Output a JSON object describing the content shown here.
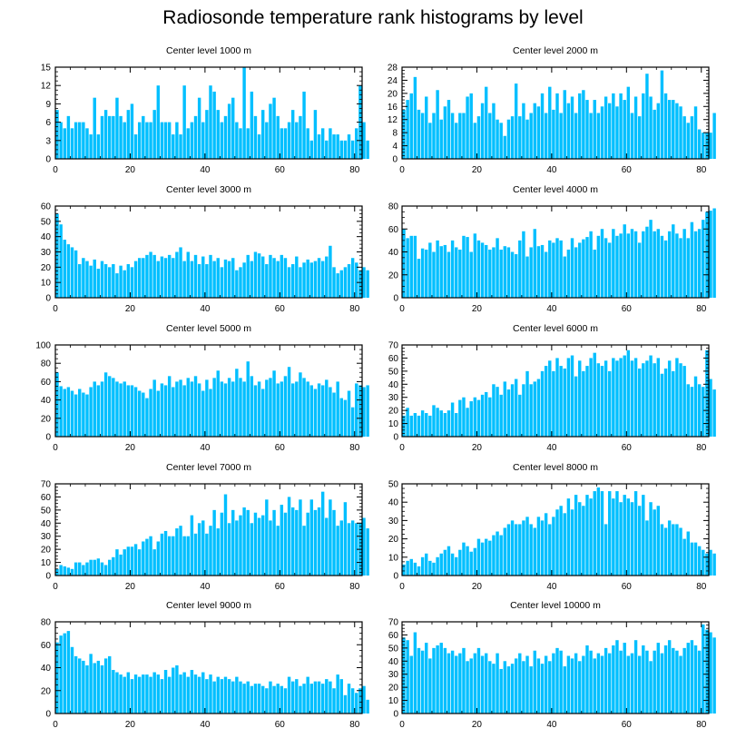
{
  "figure": {
    "title": "Radiosonde temperature rank histograms by level"
  },
  "chart_data": [
    {
      "type": "bar",
      "title": "Center level 1000 m",
      "x_start": 0,
      "xlim": [
        0,
        82
      ],
      "ylim": [
        0,
        15
      ],
      "xticks": [
        0,
        20,
        40,
        60,
        80
      ],
      "yticks": [
        0,
        3,
        6,
        9,
        12,
        15
      ],
      "y_tick_side": "left",
      "values": [
        8,
        6,
        5,
        7,
        5,
        6,
        6,
        6,
        5,
        4,
        10,
        4,
        7,
        8,
        7,
        7,
        10,
        7,
        6,
        8,
        9,
        4,
        6,
        7,
        6,
        6,
        8,
        12,
        6,
        6,
        6,
        4,
        6,
        4,
        12,
        5,
        6,
        7,
        10,
        6,
        8,
        12,
        11,
        8,
        6,
        7,
        9,
        10,
        6,
        5,
        15,
        5,
        11,
        7,
        4,
        8,
        6,
        9,
        10,
        7,
        5,
        5,
        6,
        8,
        6,
        7,
        11,
        5,
        3,
        8,
        4,
        5,
        3,
        5,
        4,
        4,
        3,
        3,
        4,
        3,
        5,
        12,
        6,
        3
      ],
      "bar_color": "#00bfff"
    },
    {
      "type": "bar",
      "title": "Center level 2000 m",
      "x_start": 0,
      "xlim": [
        0,
        82
      ],
      "ylim": [
        0,
        28
      ],
      "xticks": [
        0,
        20,
        40,
        60,
        80
      ],
      "yticks": [
        0,
        4,
        8,
        12,
        16,
        20,
        24,
        28
      ],
      "y_tick_side": "left",
      "values": [
        15,
        18,
        20,
        25,
        15,
        14,
        19,
        11,
        14,
        21,
        12,
        16,
        18,
        14,
        11,
        14,
        14,
        19,
        20,
        11,
        13,
        17,
        22,
        14,
        17,
        12,
        11,
        7,
        12,
        13,
        23,
        13,
        17,
        12,
        14,
        17,
        16,
        20,
        14,
        22,
        15,
        20,
        14,
        21,
        17,
        19,
        14,
        20,
        21,
        18,
        14,
        18,
        14,
        16,
        19,
        17,
        20,
        16,
        20,
        18,
        22,
        14,
        19,
        13,
        20,
        26,
        19,
        15,
        17,
        27,
        20,
        18,
        18,
        17,
        16,
        13,
        11,
        13,
        16,
        9,
        8,
        8,
        8,
        14
      ],
      "bar_color": "#00bfff"
    },
    {
      "type": "bar",
      "title": "Center level 3000 m",
      "x_start": 0,
      "xlim": [
        0,
        82
      ],
      "ylim": [
        0,
        60
      ],
      "xticks": [
        0,
        20,
        40,
        60,
        80
      ],
      "yticks": [
        0,
        10,
        20,
        30,
        40,
        50,
        60
      ],
      "y_tick_side": "left",
      "values": [
        55,
        48,
        38,
        35,
        33,
        31,
        22,
        26,
        24,
        21,
        25,
        19,
        24,
        22,
        20,
        22,
        16,
        21,
        18,
        22,
        20,
        24,
        26,
        26,
        28,
        30,
        28,
        24,
        27,
        26,
        28,
        26,
        30,
        33,
        24,
        30,
        24,
        28,
        22,
        27,
        22,
        28,
        24,
        26,
        20,
        25,
        24,
        26,
        18,
        20,
        23,
        28,
        24,
        30,
        29,
        27,
        22,
        28,
        26,
        24,
        28,
        26,
        20,
        22,
        27,
        20,
        23,
        25,
        23,
        24,
        26,
        24,
        27,
        34,
        20,
        16,
        18,
        20,
        22,
        26,
        23,
        18,
        20,
        18
      ],
      "bar_color": "#00bfff"
    },
    {
      "type": "bar",
      "title": "Center level 4000 m",
      "x_start": 0,
      "xlim": [
        0,
        82
      ],
      "ylim": [
        0,
        80
      ],
      "xticks": [
        0,
        20,
        40,
        60,
        80
      ],
      "yticks": [
        0,
        20,
        40,
        60,
        80
      ],
      "y_tick_side": "right",
      "values": [
        60,
        52,
        54,
        54,
        34,
        43,
        42,
        48,
        40,
        50,
        45,
        46,
        40,
        50,
        44,
        42,
        54,
        53,
        40,
        56,
        50,
        48,
        46,
        42,
        44,
        52,
        42,
        45,
        44,
        40,
        38,
        50,
        58,
        36,
        44,
        60,
        45,
        46,
        40,
        50,
        48,
        52,
        50,
        36,
        42,
        52,
        44,
        48,
        51,
        53,
        58,
        42,
        54,
        60,
        52,
        48,
        60,
        54,
        56,
        64,
        56,
        60,
        58,
        48,
        58,
        62,
        68,
        58,
        60,
        54,
        50,
        58,
        64,
        56,
        52,
        60,
        52,
        66,
        58,
        60,
        68,
        75,
        76,
        78
      ],
      "bar_color": "#00bfff"
    },
    {
      "type": "bar",
      "title": "Center level 5000 m",
      "x_start": 0,
      "xlim": [
        0,
        82
      ],
      "ylim": [
        0,
        100
      ],
      "xticks": [
        0,
        20,
        40,
        60,
        80
      ],
      "yticks": [
        0,
        20,
        40,
        60,
        80,
        100
      ],
      "y_tick_side": "left",
      "values": [
        70,
        55,
        52,
        54,
        50,
        46,
        52,
        48,
        46,
        54,
        60,
        56,
        60,
        70,
        66,
        64,
        60,
        58,
        60,
        56,
        56,
        54,
        50,
        48,
        42,
        52,
        62,
        50,
        58,
        56,
        66,
        54,
        60,
        62,
        56,
        64,
        60,
        66,
        58,
        50,
        62,
        52,
        64,
        72,
        60,
        58,
        64,
        60,
        74,
        64,
        60,
        82,
        66,
        56,
        60,
        52,
        62,
        64,
        72,
        58,
        60,
        66,
        76,
        58,
        60,
        70,
        64,
        60,
        56,
        52,
        58,
        56,
        62,
        54,
        48,
        60,
        42,
        40,
        50,
        32,
        58,
        56,
        54,
        56
      ],
      "bar_color": "#00bfff"
    },
    {
      "type": "bar",
      "title": "Center level 6000 m",
      "x_start": 0,
      "xlim": [
        0,
        82
      ],
      "ylim": [
        0,
        70
      ],
      "xticks": [
        0,
        20,
        40,
        60,
        80
      ],
      "yticks": [
        0,
        10,
        20,
        30,
        40,
        50,
        60,
        70
      ],
      "y_tick_side": "right",
      "values": [
        16,
        22,
        16,
        18,
        16,
        20,
        18,
        16,
        24,
        22,
        20,
        18,
        20,
        26,
        18,
        28,
        30,
        22,
        27,
        30,
        28,
        32,
        34,
        30,
        40,
        38,
        32,
        42,
        36,
        40,
        44,
        32,
        40,
        50,
        40,
        42,
        44,
        50,
        54,
        58,
        50,
        60,
        54,
        52,
        60,
        62,
        46,
        58,
        50,
        54,
        60,
        64,
        56,
        54,
        58,
        50,
        60,
        58,
        60,
        62,
        66,
        58,
        60,
        52,
        56,
        58,
        62,
        56,
        60,
        48,
        52,
        58,
        50,
        60,
        56,
        54,
        40,
        38,
        46,
        40,
        38,
        66,
        44,
        36
      ],
      "bar_color": "#00bfff"
    },
    {
      "type": "bar",
      "title": "Center level 7000 m",
      "x_start": 0,
      "xlim": [
        0,
        82
      ],
      "ylim": [
        0,
        70
      ],
      "xticks": [
        0,
        20,
        40,
        60,
        80
      ],
      "yticks": [
        0,
        10,
        20,
        30,
        40,
        50,
        60,
        70
      ],
      "y_tick_side": "left",
      "values": [
        5,
        8,
        7,
        6,
        5,
        10,
        10,
        8,
        10,
        12,
        12,
        13,
        10,
        8,
        12,
        14,
        20,
        16,
        20,
        22,
        22,
        24,
        20,
        26,
        28,
        30,
        20,
        26,
        32,
        34,
        30,
        30,
        36,
        38,
        30,
        30,
        46,
        32,
        40,
        42,
        32,
        38,
        50,
        36,
        48,
        62,
        40,
        50,
        42,
        46,
        52,
        50,
        40,
        48,
        44,
        46,
        58,
        42,
        50,
        38,
        54,
        48,
        60,
        52,
        50,
        58,
        38,
        48,
        58,
        50,
        52,
        64,
        44,
        58,
        50,
        38,
        42,
        56,
        40,
        42,
        40,
        40,
        44,
        36
      ],
      "bar_color": "#00bfff"
    },
    {
      "type": "bar",
      "title": "Center level 8000 m",
      "x_start": 0,
      "xlim": [
        0,
        82
      ],
      "ylim": [
        0,
        50
      ],
      "xticks": [
        0,
        20,
        40,
        60,
        80
      ],
      "yticks": [
        0,
        10,
        20,
        30,
        40,
        50
      ],
      "y_tick_side": "right",
      "values": [
        6,
        8,
        9,
        7,
        5,
        10,
        12,
        8,
        7,
        10,
        12,
        14,
        16,
        12,
        10,
        14,
        18,
        16,
        13,
        15,
        20,
        18,
        20,
        19,
        22,
        24,
        22,
        26,
        28,
        30,
        28,
        28,
        30,
        32,
        28,
        26,
        32,
        30,
        34,
        28,
        32,
        36,
        38,
        34,
        42,
        36,
        44,
        40,
        38,
        44,
        42,
        46,
        48,
        46,
        28,
        46,
        42,
        46,
        40,
        44,
        42,
        40,
        46,
        38,
        44,
        30,
        40,
        36,
        38,
        28,
        26,
        30,
        28,
        28,
        26,
        20,
        24,
        18,
        18,
        16,
        14,
        12,
        14,
        12
      ],
      "bar_color": "#00bfff"
    },
    {
      "type": "bar",
      "title": "Center level 9000 m",
      "x_start": 0,
      "xlim": [
        0,
        82
      ],
      "ylim": [
        0,
        80
      ],
      "xticks": [
        0,
        20,
        40,
        60,
        80
      ],
      "yticks": [
        0,
        20,
        40,
        60,
        80
      ],
      "y_tick_side": "left",
      "values": [
        62,
        68,
        70,
        72,
        58,
        50,
        48,
        46,
        42,
        52,
        44,
        46,
        42,
        48,
        50,
        38,
        36,
        34,
        32,
        36,
        30,
        34,
        32,
        34,
        34,
        32,
        36,
        34,
        30,
        38,
        32,
        40,
        42,
        34,
        36,
        32,
        38,
        34,
        32,
        36,
        30,
        34,
        28,
        32,
        30,
        32,
        30,
        28,
        32,
        28,
        26,
        28,
        24,
        26,
        26,
        24,
        22,
        28,
        24,
        26,
        24,
        22,
        32,
        28,
        30,
        24,
        26,
        32,
        26,
        28,
        28,
        26,
        30,
        28,
        22,
        34,
        30,
        16,
        26,
        22,
        18,
        22,
        24,
        12
      ],
      "bar_color": "#00bfff"
    },
    {
      "type": "bar",
      "title": "Center level 10000 m",
      "x_start": 0,
      "xlim": [
        0,
        82
      ],
      "ylim": [
        0,
        70
      ],
      "xticks": [
        0,
        20,
        40,
        60,
        80
      ],
      "yticks": [
        0,
        10,
        20,
        30,
        40,
        50,
        60,
        70
      ],
      "y_tick_side": "right",
      "values": [
        58,
        56,
        44,
        62,
        50,
        48,
        54,
        42,
        50,
        52,
        54,
        50,
        46,
        48,
        44,
        46,
        50,
        40,
        42,
        46,
        50,
        44,
        46,
        40,
        38,
        46,
        34,
        40,
        36,
        38,
        42,
        46,
        40,
        44,
        36,
        48,
        42,
        38,
        44,
        40,
        46,
        50,
        48,
        36,
        44,
        42,
        46,
        40,
        44,
        52,
        48,
        42,
        46,
        44,
        50,
        46,
        52,
        56,
        48,
        54,
        44,
        46,
        56,
        44,
        52,
        48,
        40,
        48,
        54,
        46,
        52,
        56,
        50,
        48,
        44,
        50,
        54,
        56,
        52,
        48,
        68,
        64,
        62,
        58
      ],
      "bar_color": "#00bfff"
    }
  ]
}
